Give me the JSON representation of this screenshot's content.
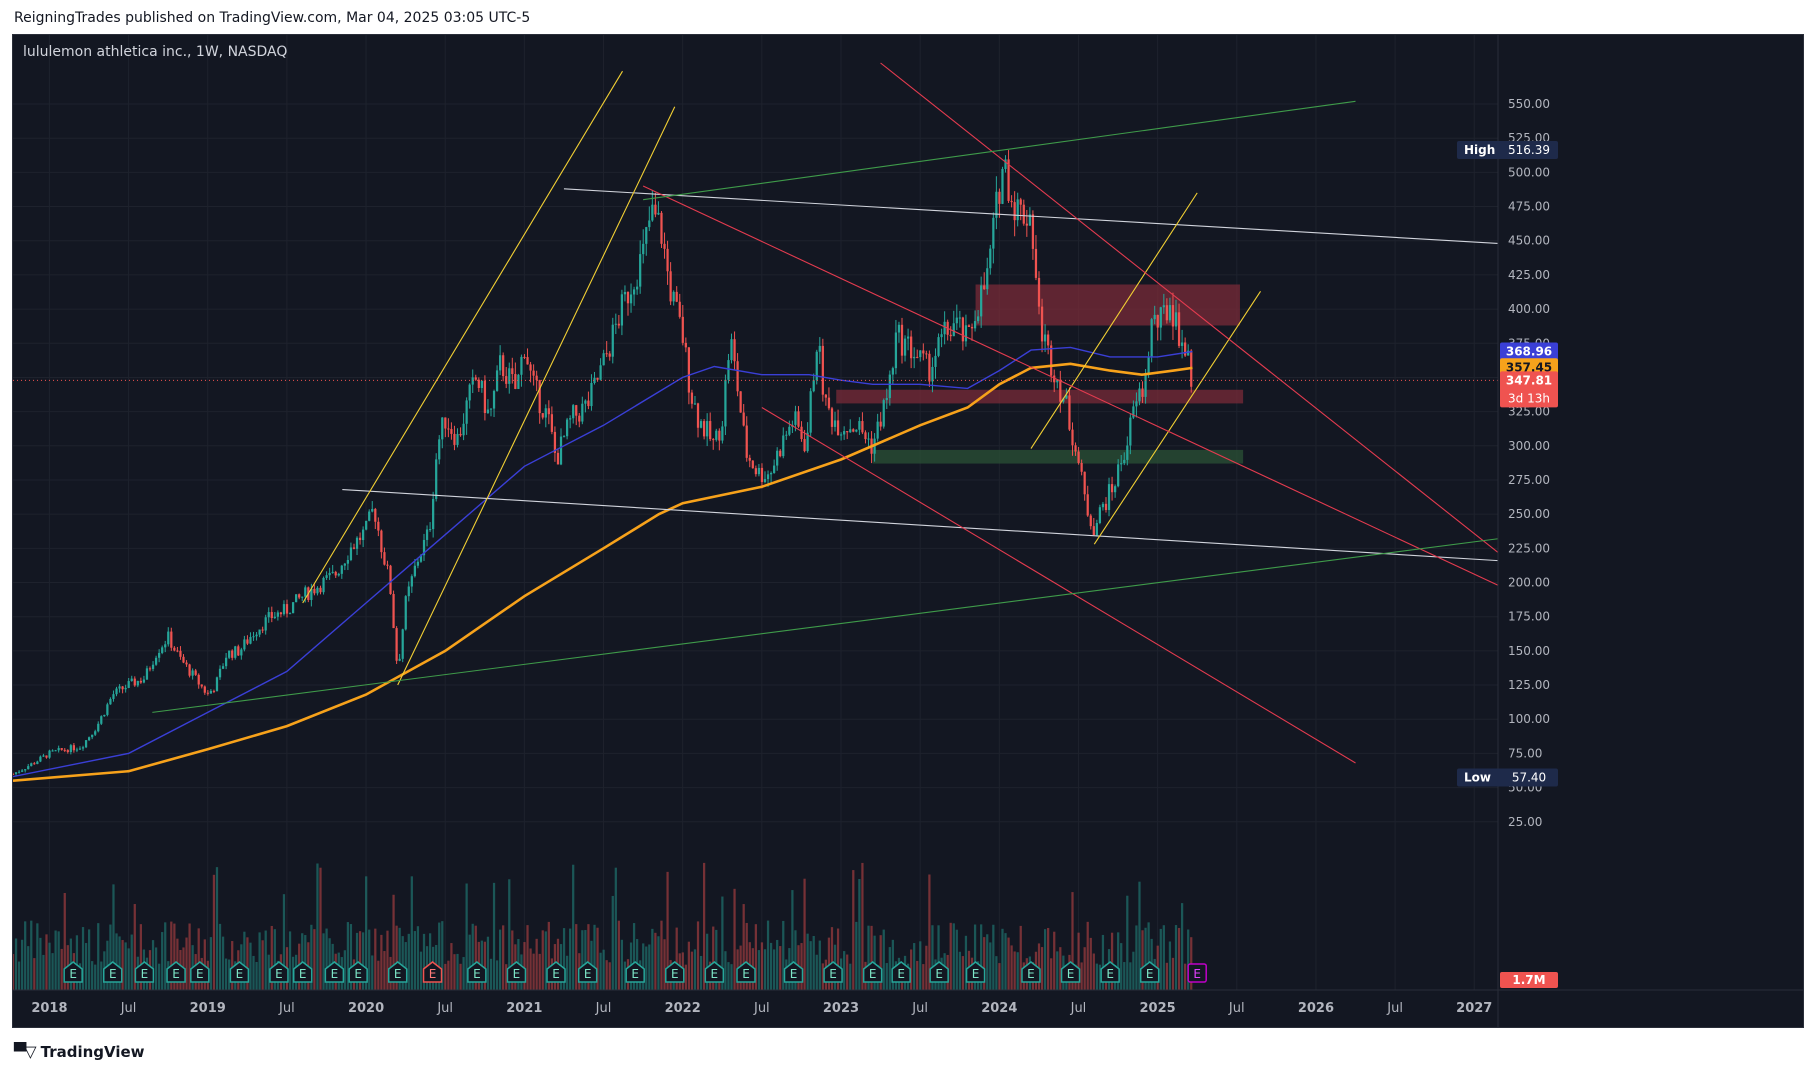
{
  "header": {
    "published_by": "ReigningTrades published on TradingView.com, Mar 04, 2025 03:05 UTC-5"
  },
  "chart_title": "lululemon athletica inc., 1W, NASDAQ",
  "footer": {
    "brand": "TradingView",
    "brand_icon": "tradingview-logo-icon"
  },
  "colors": {
    "background": "#131722",
    "grid": "#1e222d",
    "up": "#26a69a",
    "down": "#ef5350",
    "ma_fast": "#3a3fd6",
    "ma_slow": "#f7a21b",
    "trend_white": "#d1d4dc",
    "trend_yellow": "#f2d034",
    "trend_red": "#e33b4f",
    "trend_green": "#3f9b4a",
    "zone_red": "#7a2b38",
    "zone_green": "#2b5236"
  },
  "chart_data": {
    "type": "candlestick",
    "symbol": "lululemon athletica inc.",
    "interval": "1W",
    "exchange": "NASDAQ",
    "x_tick_labels": [
      {
        "label": "2018",
        "t": 2018.0,
        "major": true
      },
      {
        "label": "Jul",
        "t": 2018.5,
        "major": false
      },
      {
        "label": "2019",
        "t": 2019.0,
        "major": true
      },
      {
        "label": "Jul",
        "t": 2019.5,
        "major": false
      },
      {
        "label": "2020",
        "t": 2020.0,
        "major": true
      },
      {
        "label": "Jul",
        "t": 2020.5,
        "major": false
      },
      {
        "label": "2021",
        "t": 2021.0,
        "major": true
      },
      {
        "label": "Jul",
        "t": 2021.5,
        "major": false
      },
      {
        "label": "2022",
        "t": 2022.0,
        "major": true
      },
      {
        "label": "Jul",
        "t": 2022.5,
        "major": false
      },
      {
        "label": "2023",
        "t": 2023.0,
        "major": true
      },
      {
        "label": "Jul",
        "t": 2023.5,
        "major": false
      },
      {
        "label": "2024",
        "t": 2024.0,
        "major": true
      },
      {
        "label": "Jul",
        "t": 2024.5,
        "major": false
      },
      {
        "label": "2025",
        "t": 2025.0,
        "major": true
      },
      {
        "label": "Jul",
        "t": 2025.5,
        "major": false
      },
      {
        "label": "2026",
        "t": 2026.0,
        "major": true
      },
      {
        "label": "Jul",
        "t": 2026.5,
        "major": false
      },
      {
        "label": "2027",
        "t": 2027.0,
        "major": true
      }
    ],
    "y_tick_labels": [
      "550.00",
      "525.00",
      "500.00",
      "475.00",
      "450.00",
      "425.00",
      "400.00",
      "375.00",
      "350.00",
      "325.00",
      "300.00",
      "275.00",
      "250.00",
      "225.00",
      "200.00",
      "175.00",
      "150.00",
      "125.00",
      "100.00",
      "75.00",
      "50.00",
      "25.00"
    ],
    "y_ticks": [
      550,
      525,
      500,
      475,
      450,
      425,
      400,
      375,
      350,
      325,
      300,
      275,
      250,
      225,
      200,
      175,
      150,
      125,
      100,
      75,
      50,
      25
    ],
    "ylim": [
      8,
      580
    ],
    "xlim": [
      2017.77,
      2027.15
    ],
    "price_path": [
      [
        2017.77,
        60
      ],
      [
        2017.9,
        68
      ],
      [
        2018.0,
        75
      ],
      [
        2018.1,
        78
      ],
      [
        2018.2,
        80
      ],
      [
        2018.3,
        95
      ],
      [
        2018.4,
        118
      ],
      [
        2018.5,
        125
      ],
      [
        2018.6,
        130
      ],
      [
        2018.68,
        150
      ],
      [
        2018.75,
        160
      ],
      [
        2018.82,
        145
      ],
      [
        2018.92,
        130
      ],
      [
        2019.0,
        118
      ],
      [
        2019.05,
        125
      ],
      [
        2019.12,
        148
      ],
      [
        2019.2,
        150
      ],
      [
        2019.3,
        165
      ],
      [
        2019.4,
        175
      ],
      [
        2019.5,
        180
      ],
      [
        2019.6,
        190
      ],
      [
        2019.7,
        198
      ],
      [
        2019.8,
        205
      ],
      [
        2019.9,
        225
      ],
      [
        2020.0,
        238
      ],
      [
        2020.05,
        255
      ],
      [
        2020.1,
        225
      ],
      [
        2020.15,
        200
      ],
      [
        2020.2,
        135
      ],
      [
        2020.25,
        185
      ],
      [
        2020.32,
        215
      ],
      [
        2020.4,
        238
      ],
      [
        2020.45,
        300
      ],
      [
        2020.5,
        320
      ],
      [
        2020.58,
        305
      ],
      [
        2020.65,
        335
      ],
      [
        2020.7,
        350
      ],
      [
        2020.78,
        320
      ],
      [
        2020.85,
        360
      ],
      [
        2020.95,
        340
      ],
      [
        2021.0,
        375
      ],
      [
        2021.05,
        345
      ],
      [
        2021.15,
        320
      ],
      [
        2021.2,
        290
      ],
      [
        2021.3,
        320
      ],
      [
        2021.4,
        330
      ],
      [
        2021.5,
        360
      ],
      [
        2021.6,
        395
      ],
      [
        2021.68,
        420
      ],
      [
        2021.75,
        440
      ],
      [
        2021.8,
        470
      ],
      [
        2021.86,
        460
      ],
      [
        2021.92,
        415
      ],
      [
        2022.0,
        380
      ],
      [
        2022.05,
        340
      ],
      [
        2022.1,
        320
      ],
      [
        2022.2,
        300
      ],
      [
        2022.25,
        320
      ],
      [
        2022.3,
        380
      ],
      [
        2022.35,
        340
      ],
      [
        2022.4,
        295
      ],
      [
        2022.48,
        280
      ],
      [
        2022.55,
        280
      ],
      [
        2022.62,
        300
      ],
      [
        2022.7,
        320
      ],
      [
        2022.78,
        300
      ],
      [
        2022.85,
        380
      ],
      [
        2022.9,
        330
      ],
      [
        2022.95,
        320
      ],
      [
        2023.0,
        315
      ],
      [
        2023.1,
        315
      ],
      [
        2023.2,
        300
      ],
      [
        2023.3,
        340
      ],
      [
        2023.35,
        380
      ],
      [
        2023.45,
        370
      ],
      [
        2023.55,
        355
      ],
      [
        2023.65,
        380
      ],
      [
        2023.72,
        390
      ],
      [
        2023.8,
        375
      ],
      [
        2023.85,
        400
      ],
      [
        2023.92,
        420
      ],
      [
        2024.0,
        490
      ],
      [
        2024.03,
        510
      ],
      [
        2024.08,
        480
      ],
      [
        2024.14,
        470
      ],
      [
        2024.2,
        470
      ],
      [
        2024.25,
        395
      ],
      [
        2024.3,
        370
      ],
      [
        2024.35,
        355
      ],
      [
        2024.42,
        330
      ],
      [
        2024.48,
        300
      ],
      [
        2024.55,
        255
      ],
      [
        2024.6,
        240
      ],
      [
        2024.65,
        255
      ],
      [
        2024.72,
        270
      ],
      [
        2024.8,
        300
      ],
      [
        2024.86,
        330
      ],
      [
        2024.92,
        345
      ],
      [
        2024.96,
        390
      ],
      [
        2025.02,
        390
      ],
      [
        2025.08,
        405
      ],
      [
        2025.13,
        385
      ],
      [
        2025.17,
        372
      ],
      [
        2025.2,
        357
      ],
      [
        2025.22,
        348
      ]
    ],
    "series": [
      {
        "name": "",
        "kind": "ma_fast",
        "points": [
          [
            2017.77,
            58
          ],
          [
            2018.5,
            75
          ],
          [
            2019.0,
            105
          ],
          [
            2019.5,
            135
          ],
          [
            2020.0,
            185
          ],
          [
            2020.5,
            235
          ],
          [
            2021.0,
            285
          ],
          [
            2021.5,
            315
          ],
          [
            2022.0,
            350
          ],
          [
            2022.2,
            358
          ],
          [
            2022.5,
            352
          ],
          [
            2022.8,
            352
          ],
          [
            2023.0,
            348
          ],
          [
            2023.2,
            345
          ],
          [
            2023.5,
            345
          ],
          [
            2023.8,
            342
          ],
          [
            2024.0,
            355
          ],
          [
            2024.2,
            370
          ],
          [
            2024.45,
            372
          ],
          [
            2024.7,
            365
          ],
          [
            2025.0,
            365
          ],
          [
            2025.22,
            369
          ]
        ]
      },
      {
        "name": "",
        "kind": "ma_slow",
        "points": [
          [
            2017.77,
            55
          ],
          [
            2018.5,
            62
          ],
          [
            2019.0,
            78
          ],
          [
            2019.5,
            95
          ],
          [
            2020.0,
            118
          ],
          [
            2020.5,
            150
          ],
          [
            2021.0,
            190
          ],
          [
            2021.5,
            225
          ],
          [
            2021.85,
            250
          ],
          [
            2022.0,
            258
          ],
          [
            2022.5,
            270
          ],
          [
            2023.0,
            290
          ],
          [
            2023.5,
            315
          ],
          [
            2023.8,
            328
          ],
          [
            2024.0,
            345
          ],
          [
            2024.2,
            357
          ],
          [
            2024.45,
            360
          ],
          [
            2024.7,
            355
          ],
          [
            2024.9,
            352
          ],
          [
            2025.1,
            355
          ],
          [
            2025.22,
            357
          ]
        ]
      }
    ],
    "trend_lines": [
      {
        "color": "white",
        "points": [
          [
            2021.25,
            488
          ],
          [
            2027.15,
            448
          ]
        ]
      },
      {
        "color": "white",
        "points": [
          [
            2019.85,
            268
          ],
          [
            2027.15,
            216
          ]
        ]
      },
      {
        "color": "yellow",
        "points": [
          [
            2019.6,
            185
          ],
          [
            2021.62,
            574
          ]
        ]
      },
      {
        "color": "yellow",
        "points": [
          [
            2020.2,
            125
          ],
          [
            2021.95,
            548
          ]
        ]
      },
      {
        "color": "yellow",
        "points": [
          [
            2024.2,
            298
          ],
          [
            2025.25,
            485
          ]
        ]
      },
      {
        "color": "yellow",
        "points": [
          [
            2024.6,
            228
          ],
          [
            2025.65,
            413
          ]
        ]
      },
      {
        "color": "red",
        "points": [
          [
            2021.75,
            490
          ],
          [
            2027.15,
            198
          ]
        ]
      },
      {
        "color": "red",
        "points": [
          [
            2023.25,
            580
          ],
          [
            2027.15,
            222
          ]
        ]
      },
      {
        "color": "red",
        "points": [
          [
            2022.5,
            328
          ],
          [
            2026.25,
            68
          ]
        ]
      },
      {
        "color": "green",
        "points": [
          [
            2021.75,
            480
          ],
          [
            2026.25,
            552
          ]
        ]
      },
      {
        "color": "green",
        "points": [
          [
            2018.65,
            105
          ],
          [
            2027.15,
            232
          ]
        ]
      }
    ],
    "zones": [
      {
        "color": "red",
        "t0": 2023.85,
        "t1": 2025.52,
        "y0": 388,
        "y1": 418
      },
      {
        "color": "red",
        "t0": 2022.97,
        "t1": 2025.54,
        "y0": 331,
        "y1": 341
      },
      {
        "color": "green",
        "t0": 2023.2,
        "t1": 2025.54,
        "y0": 287,
        "y1": 297
      }
    ],
    "volume_scale_max": 1.0,
    "earnings_markers": [
      2018.15,
      2018.4,
      2018.6,
      2018.8,
      2018.95,
      2019.2,
      2019.45,
      2019.6,
      2019.8,
      2019.95,
      2020.2,
      2020.42,
      2020.7,
      2020.95,
      2021.2,
      2021.4,
      2021.7,
      2021.95,
      2022.2,
      2022.4,
      2022.7,
      2022.95,
      2023.2,
      2023.38,
      2023.62,
      2023.85,
      2024.2,
      2024.45,
      2024.7,
      2024.95
    ],
    "earnings_down": [
      2020.42
    ],
    "earnings_upcoming": 2025.25,
    "last_price": 347.81,
    "countdown": "3d 13h",
    "ma_fast_value": 368.96,
    "ma_slow_value": 357.45,
    "high": {
      "label": "High",
      "value": "516.39"
    },
    "low": {
      "label": "Low",
      "value": "57.40"
    },
    "volume_label": "1.7M",
    "labels": {
      "ma_fast": "368.96",
      "ma_slow": "357.45",
      "last": "347.81",
      "countdown": "3d 13h",
      "earnings": "E"
    }
  }
}
